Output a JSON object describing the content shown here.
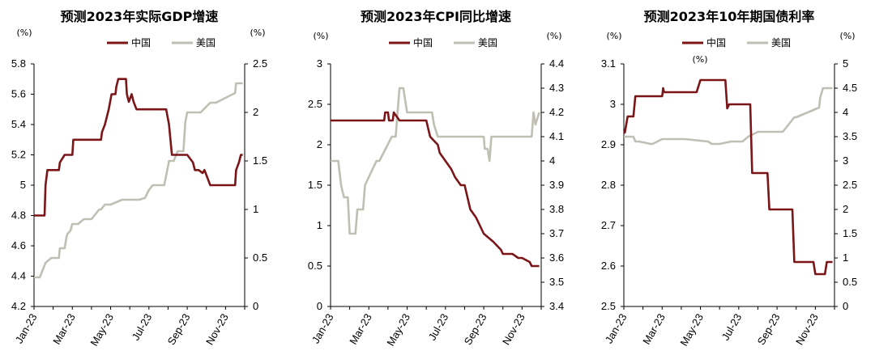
{
  "colors": {
    "china": "#7a1518",
    "us": "#bfbfb4"
  },
  "chart_data": [
    {
      "type": "line",
      "title": "预测2023年实际GDP增速",
      "left_unit": "(%)",
      "right_unit": "(%)",
      "x_tick_labels": [
        "Jan-23",
        "Mar-23",
        "May-23",
        "Jul-23",
        "Sep-23",
        "Nov-23"
      ],
      "x_range": [
        0,
        11
      ],
      "left_axis": {
        "min": 4.2,
        "max": 5.8,
        "ticks": [
          4.2,
          4.4,
          4.6,
          4.8,
          5,
          5.2,
          5.4,
          5.6,
          5.8
        ],
        "labels": [
          "4.2",
          "4.4",
          "4.6",
          "4.8",
          "5",
          "5.2",
          "5.4",
          "5.6",
          "5.8"
        ]
      },
      "right_axis": {
        "min": 0,
        "max": 2.5,
        "ticks": [
          0,
          0.5,
          1,
          1.5,
          2,
          2.5
        ],
        "labels": [
          "0",
          "0.5",
          "1",
          "1.5",
          "2",
          "2.5"
        ]
      },
      "series": [
        {
          "name": "中国",
          "axis": "left",
          "color": "#7a1518",
          "x": [
            0,
            0.55,
            0.6,
            0.7,
            1.3,
            1.35,
            1.6,
            2.0,
            2.05,
            3.5,
            3.55,
            3.7,
            3.9,
            4.05,
            4.25,
            4.3,
            4.4,
            4.5,
            4.8,
            4.85,
            4.95,
            5.1,
            5.2,
            5.35,
            6.9,
            7.05,
            7.2,
            8.0,
            8.3,
            8.4,
            8.6,
            8.8,
            8.9,
            9.2,
            10.5,
            10.55,
            10.7,
            10.8,
            10.9
          ],
          "y": [
            4.8,
            4.8,
            5.0,
            5.1,
            5.1,
            5.15,
            5.2,
            5.2,
            5.3,
            5.3,
            5.35,
            5.4,
            5.5,
            5.6,
            5.6,
            5.65,
            5.7,
            5.7,
            5.7,
            5.6,
            5.55,
            5.6,
            5.55,
            5.5,
            5.5,
            5.4,
            5.2,
            5.2,
            5.15,
            5.1,
            5.1,
            5.08,
            5.1,
            5.0,
            5.0,
            5.1,
            5.15,
            5.2,
            5.2
          ]
        },
        {
          "name": "美国",
          "axis": "right",
          "color": "#bfbfb4",
          "x": [
            0,
            0.3,
            0.5,
            0.6,
            0.9,
            1.3,
            1.35,
            1.6,
            1.7,
            1.75,
            1.9,
            2.0,
            2.3,
            2.6,
            3.0,
            3.4,
            3.5,
            3.7,
            4.0,
            4.6,
            4.7,
            5.0,
            5.5,
            5.8,
            6.0,
            6.2,
            6.8,
            7.0,
            7.05,
            7.3,
            7.5,
            7.8,
            7.9,
            8.0,
            8.2,
            8.4,
            8.7,
            9.2,
            9.5,
            10.0,
            10.5,
            10.55,
            10.9
          ],
          "y": [
            0.3,
            0.3,
            0.4,
            0.45,
            0.5,
            0.5,
            0.6,
            0.6,
            0.72,
            0.75,
            0.78,
            0.85,
            0.85,
            0.9,
            0.9,
            1.0,
            1.0,
            1.05,
            1.05,
            1.1,
            1.1,
            1.1,
            1.1,
            1.12,
            1.2,
            1.25,
            1.25,
            1.45,
            1.5,
            1.5,
            1.6,
            1.6,
            1.9,
            2.0,
            2.0,
            2.0,
            2.0,
            2.1,
            2.1,
            2.15,
            2.2,
            2.3,
            2.3
          ]
        }
      ]
    },
    {
      "type": "line",
      "title": "预测2023年CPI同比增速",
      "left_unit": "(%)",
      "right_unit": "(%)",
      "x_tick_labels": [
        "Jan-23",
        "Mar-23",
        "May-23",
        "Jul-23",
        "Sep-23",
        "Nov-23"
      ],
      "x_range": [
        0,
        11
      ],
      "left_axis": {
        "min": 0,
        "max": 3,
        "ticks": [
          0,
          0.5,
          1,
          1.5,
          2,
          2.5,
          3
        ],
        "labels": [
          "0",
          "0.5",
          "1",
          "1.5",
          "2",
          "2.5",
          "3"
        ]
      },
      "right_axis": {
        "min": 3.4,
        "max": 4.4,
        "ticks": [
          3.4,
          3.5,
          3.6,
          3.7,
          3.8,
          3.9,
          4,
          4.1,
          4.2,
          4.3,
          4.4
        ],
        "labels": [
          "3.4",
          "3.5",
          "3.6",
          "3.7",
          "3.8",
          "3.9",
          "4",
          "4.1",
          "4.2",
          "4.3",
          "4.4"
        ]
      },
      "series": [
        {
          "name": "中国",
          "axis": "left",
          "color": "#7a1518",
          "x": [
            0,
            2.8,
            2.85,
            3.0,
            3.05,
            3.25,
            3.3,
            3.6,
            5.0,
            5.1,
            5.2,
            5.4,
            5.6,
            5.7,
            6.0,
            6.3,
            6.5,
            6.8,
            7.0,
            7.3,
            7.6,
            8.0,
            8.5,
            8.9,
            9.0,
            9.5,
            9.8,
            10.0,
            10.4,
            10.5,
            10.9
          ],
          "y": [
            2.3,
            2.3,
            2.4,
            2.4,
            2.3,
            2.3,
            2.4,
            2.3,
            2.3,
            2.2,
            2.1,
            2.05,
            2.0,
            1.9,
            1.8,
            1.7,
            1.6,
            1.5,
            1.5,
            1.2,
            1.1,
            0.9,
            0.8,
            0.7,
            0.65,
            0.65,
            0.6,
            0.6,
            0.55,
            0.5,
            0.5
          ]
        },
        {
          "name": "美国",
          "axis": "right",
          "color": "#bfbfb4",
          "x": [
            0,
            0.4,
            0.55,
            0.7,
            0.9,
            1.0,
            1.3,
            1.4,
            1.7,
            1.8,
            2.4,
            2.55,
            3.2,
            3.4,
            3.5,
            3.6,
            3.8,
            4.0,
            4.1,
            4.3,
            4.6,
            5.3,
            5.4,
            5.6,
            5.8,
            6.3,
            8.0,
            8.05,
            8.2,
            8.3,
            8.4,
            9.2,
            9.7,
            10.5,
            10.6,
            10.7,
            10.9
          ],
          "y": [
            4.0,
            4.0,
            3.9,
            3.85,
            3.85,
            3.7,
            3.7,
            3.8,
            3.8,
            3.9,
            4.0,
            4.0,
            4.1,
            4.1,
            4.2,
            4.3,
            4.3,
            4.2,
            4.2,
            4.2,
            4.2,
            4.2,
            4.15,
            4.1,
            4.1,
            4.1,
            4.1,
            4.05,
            4.05,
            4.0,
            4.1,
            4.1,
            4.1,
            4.1,
            4.2,
            4.15,
            4.2
          ]
        }
      ]
    },
    {
      "type": "line",
      "title": "预测2023年10年期国债利率",
      "left_unit": "(%)",
      "right_unit": "(%)",
      "x_tick_labels": [
        "Jan-23",
        "Mar-23",
        "May-23",
        "Jul-23",
        "Sep-23",
        "Nov-23"
      ],
      "x_range": [
        0,
        11
      ],
      "left_axis": {
        "min": 2.5,
        "max": 3.1,
        "ticks": [
          2.5,
          2.6,
          2.7,
          2.8,
          2.9,
          3,
          3.1
        ],
        "labels": [
          "2.5",
          "2.6",
          "2.7",
          "2.8",
          "2.9",
          "3",
          "3.1"
        ]
      },
      "right_axis": {
        "min": 0,
        "max": 5,
        "ticks": [
          0,
          0.5,
          1,
          1.5,
          2,
          2.5,
          3,
          3.5,
          4,
          4.5,
          5
        ],
        "labels": [
          "0",
          "0.5",
          "1",
          "1.5",
          "2",
          "2.5",
          "3",
          "3.5",
          "4",
          "4.5",
          "5"
        ]
      },
      "series": [
        {
          "name": "中国",
          "axis": "left",
          "color": "#7a1518",
          "x": [
            0,
            0.05,
            0.2,
            0.5,
            0.6,
            2.0,
            2.05,
            2.1,
            3.8,
            4.0,
            5.3,
            5.4,
            5.5,
            6.6,
            6.7,
            7.5,
            7.6,
            8.8,
            8.9,
            9.9,
            10.0,
            10.5,
            10.6,
            10.9
          ],
          "y": [
            2.93,
            2.93,
            2.97,
            2.97,
            3.02,
            3.02,
            3.04,
            3.03,
            3.03,
            3.06,
            3.06,
            2.99,
            3.0,
            3.0,
            2.83,
            2.83,
            2.74,
            2.74,
            2.61,
            2.61,
            2.58,
            2.58,
            2.61,
            2.61
          ]
        },
        {
          "name": "美国",
          "axis": "right",
          "color": "#bfbfb4",
          "x": [
            0,
            0.5,
            0.6,
            0.8,
            1.4,
            1.5,
            2.0,
            3.0,
            3.2,
            4.4,
            4.6,
            5.0,
            5.6,
            6.2,
            6.5,
            7.0,
            7.5,
            8.3,
            8.9,
            9.0,
            10.2,
            10.25,
            10.4,
            10.9
          ],
          "y": [
            3.5,
            3.5,
            3.4,
            3.4,
            3.35,
            3.35,
            3.45,
            3.45,
            3.45,
            3.4,
            3.35,
            3.35,
            3.4,
            3.4,
            3.5,
            3.6,
            3.6,
            3.6,
            3.9,
            3.9,
            4.1,
            4.3,
            4.5,
            4.5
          ]
        }
      ]
    }
  ]
}
